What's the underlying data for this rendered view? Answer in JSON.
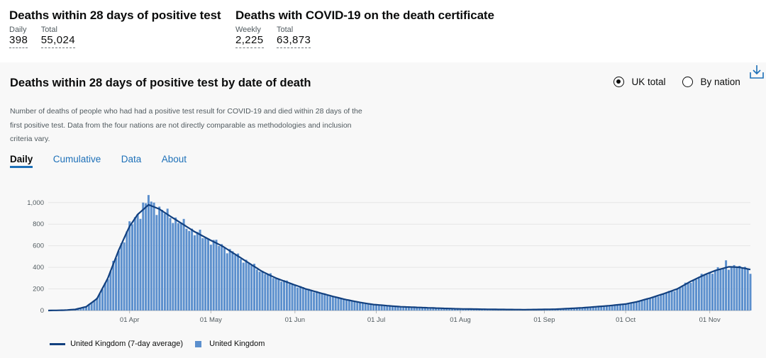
{
  "headlines": [
    {
      "title": "Deaths within 28 days of positive test",
      "stats": [
        {
          "label": "Daily",
          "value": "398"
        },
        {
          "label": "Total",
          "value": "55,024"
        }
      ]
    },
    {
      "title": "Deaths with COVID-19 on the death certificate",
      "stats": [
        {
          "label": "Weekly",
          "value": "2,225"
        },
        {
          "label": "Total",
          "value": "63,873"
        }
      ]
    }
  ],
  "card": {
    "title": "Deaths within 28 days of positive test by date of death",
    "radios": [
      {
        "label": "UK total",
        "selected": true
      },
      {
        "label": "By nation",
        "selected": false
      }
    ],
    "description": "Number of deaths of people who had had a positive test result for COVID-19 and died within 28 days of the first positive test. Data from the four nations are not directly comparable as methodologies and inclusion criteria vary.",
    "tabs": [
      {
        "label": "Daily",
        "active": true
      },
      {
        "label": "Cumulative"
      },
      {
        "label": "Data"
      },
      {
        "label": "About"
      }
    ],
    "download_icon": "download-icon"
  },
  "chart_data": {
    "type": "bar",
    "title": "",
    "xlabel": "",
    "ylabel": "",
    "ylim": [
      0,
      1000
    ],
    "yticks": [
      "0",
      "200",
      "400",
      "600",
      "800",
      "1,000"
    ],
    "xrange": [
      "2020-03-02",
      "2020-11-16"
    ],
    "xtick_labels": [
      {
        "date": "2020-04-01",
        "label": "01 Apr"
      },
      {
        "date": "2020-05-01",
        "label": "01 May"
      },
      {
        "date": "2020-06-01",
        "label": "01 Jun"
      },
      {
        "date": "2020-07-01",
        "label": "01 Jul"
      },
      {
        "date": "2020-08-01",
        "label": "01 Aug"
      },
      {
        "date": "2020-09-01",
        "label": "01 Sep"
      },
      {
        "date": "2020-10-01",
        "label": "01 Oct"
      },
      {
        "date": "2020-11-01",
        "label": "01 Nov"
      }
    ],
    "grid": "horizontal",
    "legend_position": "bottom-left",
    "series": [
      {
        "name": "United Kingdom (7-day average)",
        "kind": "line",
        "color": "#12407f"
      },
      {
        "name": "United Kingdom",
        "kind": "bar",
        "color": "#5b8fcd"
      }
    ],
    "approx_points": [
      [
        "2020-03-02",
        0
      ],
      [
        "2020-03-08",
        3
      ],
      [
        "2020-03-12",
        10
      ],
      [
        "2020-03-16",
        35
      ],
      [
        "2020-03-20",
        110
      ],
      [
        "2020-03-24",
        300
      ],
      [
        "2020-03-28",
        560
      ],
      [
        "2020-04-01",
        780
      ],
      [
        "2020-04-04",
        890
      ],
      [
        "2020-04-08",
        980
      ],
      [
        "2020-04-10",
        960
      ],
      [
        "2020-04-12",
        940
      ],
      [
        "2020-04-15",
        890
      ],
      [
        "2020-04-20",
        810
      ],
      [
        "2020-04-25",
        730
      ],
      [
        "2020-05-01",
        650
      ],
      [
        "2020-05-05",
        600
      ],
      [
        "2020-05-10",
        520
      ],
      [
        "2020-05-15",
        440
      ],
      [
        "2020-05-20",
        360
      ],
      [
        "2020-05-25",
        300
      ],
      [
        "2020-05-31",
        245
      ],
      [
        "2020-06-05",
        200
      ],
      [
        "2020-06-10",
        165
      ],
      [
        "2020-06-15",
        130
      ],
      [
        "2020-06-20",
        100
      ],
      [
        "2020-06-25",
        75
      ],
      [
        "2020-06-30",
        55
      ],
      [
        "2020-07-05",
        45
      ],
      [
        "2020-07-10",
        35
      ],
      [
        "2020-07-20",
        25
      ],
      [
        "2020-08-01",
        15
      ],
      [
        "2020-08-15",
        10
      ],
      [
        "2020-08-25",
        8
      ],
      [
        "2020-09-05",
        12
      ],
      [
        "2020-09-15",
        25
      ],
      [
        "2020-09-25",
        45
      ],
      [
        "2020-10-01",
        60
      ],
      [
        "2020-10-05",
        80
      ],
      [
        "2020-10-10",
        115
      ],
      [
        "2020-10-15",
        155
      ],
      [
        "2020-10-20",
        200
      ],
      [
        "2020-10-25",
        270
      ],
      [
        "2020-10-30",
        330
      ],
      [
        "2020-11-03",
        370
      ],
      [
        "2020-11-08",
        405
      ],
      [
        "2020-11-12",
        400
      ],
      [
        "2020-11-16",
        380
      ]
    ],
    "bar_peaks": [
      [
        "2020-04-08",
        1070
      ],
      [
        "2020-04-06",
        1000
      ],
      [
        "2020-04-10",
        1000
      ],
      [
        "2020-11-07",
        465
      ],
      [
        "2020-11-14",
        405
      ],
      [
        "2020-11-16",
        340
      ]
    ]
  }
}
